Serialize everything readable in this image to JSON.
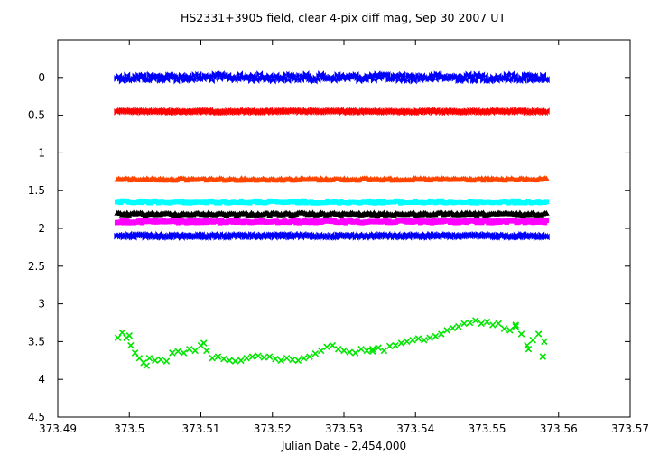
{
  "chart_data": {
    "type": "scatter",
    "title": "HS2331+3905 field, clear 4-pix diff mag, Sep 30 2007 UT",
    "xlabel": "Julian Date - 2,454,000",
    "ylabel": "",
    "xlim": [
      373.49,
      373.57
    ],
    "ylim": [
      4.5,
      -0.5
    ],
    "y_inverted": true,
    "grid": false,
    "legend": "none",
    "x_ticks": [
      "373.49",
      "373.5",
      "373.51",
      "373.52",
      "373.53",
      "373.54",
      "373.55",
      "373.56",
      "373.57"
    ],
    "y_ticks": [
      "0",
      "0.5",
      "1",
      "1.5",
      "2",
      "2.5",
      "3",
      "3.5",
      "4",
      "4.5"
    ],
    "x_range_observed": [
      373.4983,
      373.5583
    ],
    "series": [
      {
        "color": "#0000ff",
        "marker": "bowtie",
        "baseline": 0.0,
        "scatter": 0.045
      },
      {
        "color": "#ff0000",
        "marker": "bowtie",
        "baseline": 0.45,
        "scatter": 0.012
      },
      {
        "color": "#ff4500",
        "marker": "triangle",
        "baseline": 1.35,
        "scatter": 0.014
      },
      {
        "color": "#00ffff",
        "marker": "square",
        "baseline": 1.65,
        "scatter": 0.014
      },
      {
        "color": "#000000",
        "marker": "triangle",
        "baseline": 1.81,
        "scatter": 0.016
      },
      {
        "color": "#ff00ff",
        "marker": "square",
        "baseline": 1.91,
        "scatter": 0.016
      },
      {
        "color": "#0000ff",
        "marker": "bowtie",
        "baseline": 2.1,
        "scatter": 0.018
      },
      {
        "color": "#00e600",
        "marker": "x",
        "points": [
          [
            373.4984,
            3.45
          ],
          [
            373.499,
            3.38
          ],
          [
            373.4996,
            3.45
          ],
          [
            373.5002,
            3.55
          ],
          [
            373.5008,
            3.65
          ],
          [
            373.5014,
            3.72
          ],
          [
            373.502,
            3.78
          ],
          [
            373.5028,
            3.72
          ],
          [
            373.5036,
            3.75
          ],
          [
            373.5044,
            3.74
          ],
          [
            373.5052,
            3.76
          ],
          [
            373.506,
            3.65
          ],
          [
            373.5068,
            3.63
          ],
          [
            373.5076,
            3.65
          ],
          [
            373.5084,
            3.6
          ],
          [
            373.5092,
            3.62
          ],
          [
            373.51,
            3.55
          ],
          [
            373.5108,
            3.62
          ],
          [
            373.5116,
            3.72
          ],
          [
            373.5124,
            3.7
          ],
          [
            373.5132,
            3.73
          ],
          [
            373.514,
            3.75
          ],
          [
            373.5148,
            3.76
          ],
          [
            373.5156,
            3.75
          ],
          [
            373.5164,
            3.72
          ],
          [
            373.5172,
            3.7
          ],
          [
            373.518,
            3.69
          ],
          [
            373.5188,
            3.71
          ],
          [
            373.5196,
            3.7
          ],
          [
            373.5204,
            3.73
          ],
          [
            373.5212,
            3.75
          ],
          [
            373.522,
            3.72
          ],
          [
            373.5228,
            3.74
          ],
          [
            373.5236,
            3.75
          ],
          [
            373.5244,
            3.72
          ],
          [
            373.5252,
            3.7
          ],
          [
            373.526,
            3.66
          ],
          [
            373.5268,
            3.62
          ],
          [
            373.5276,
            3.57
          ],
          [
            373.5284,
            3.55
          ],
          [
            373.5292,
            3.6
          ],
          [
            373.53,
            3.62
          ],
          [
            373.5308,
            3.64
          ],
          [
            373.5316,
            3.65
          ],
          [
            373.5324,
            3.6
          ],
          [
            373.5332,
            3.62
          ],
          [
            373.534,
            3.63
          ],
          [
            373.5348,
            3.58
          ],
          [
            373.5356,
            3.62
          ],
          [
            373.5364,
            3.56
          ],
          [
            373.5372,
            3.55
          ],
          [
            373.538,
            3.52
          ],
          [
            373.5388,
            3.5
          ],
          [
            373.5396,
            3.48
          ],
          [
            373.5404,
            3.46
          ],
          [
            373.5412,
            3.48
          ],
          [
            373.542,
            3.45
          ],
          [
            373.5428,
            3.43
          ],
          [
            373.5436,
            3.4
          ],
          [
            373.5444,
            3.35
          ],
          [
            373.5452,
            3.32
          ],
          [
            373.546,
            3.3
          ],
          [
            373.5468,
            3.26
          ],
          [
            373.5476,
            3.25
          ],
          [
            373.5484,
            3.22
          ],
          [
            373.5492,
            3.26
          ],
          [
            373.55,
            3.24
          ],
          [
            373.5508,
            3.28
          ],
          [
            373.5516,
            3.26
          ],
          [
            373.5524,
            3.33
          ],
          [
            373.5532,
            3.35
          ],
          [
            373.554,
            3.3
          ],
          [
            373.5548,
            3.4
          ],
          [
            373.5556,
            3.55
          ],
          [
            373.5564,
            3.48
          ],
          [
            373.5572,
            3.4
          ],
          [
            373.558,
            3.5
          ],
          [
            373.5578,
            3.7
          ],
          [
            373.5558,
            3.6
          ],
          [
            373.554,
            3.28
          ],
          [
            373.5,
            3.42
          ],
          [
            373.5024,
            3.82
          ],
          [
            373.5104,
            3.52
          ],
          [
            373.534,
            3.6
          ]
        ]
      }
    ]
  }
}
